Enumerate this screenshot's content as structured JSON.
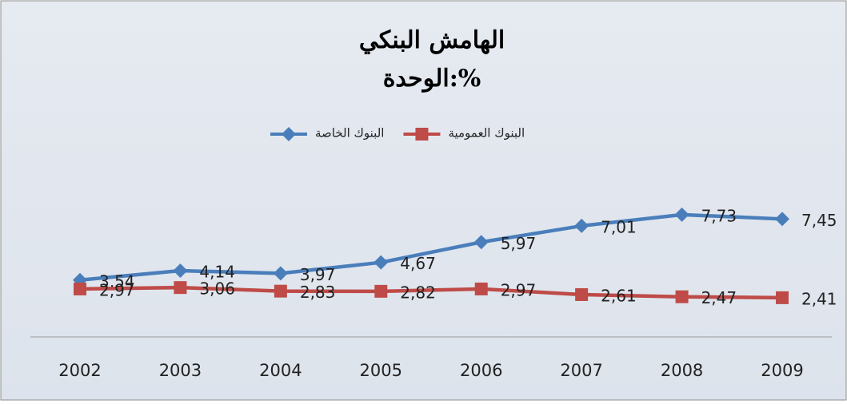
{
  "chart_data": {
    "type": "line",
    "title": "الهامش البنكي",
    "subtitle": "الوحدة:%",
    "categories": [
      "2002",
      "2003",
      "2004",
      "2005",
      "2006",
      "2007",
      "2008",
      "2009"
    ],
    "series": [
      {
        "name": "البنوك الخاصة",
        "color": "#4a7ebb",
        "marker": "diamond",
        "values": [
          3.54,
          4.14,
          3.97,
          4.67,
          5.97,
          7.01,
          7.73,
          7.45
        ],
        "value_labels": [
          "3,54",
          "4,14",
          "3,97",
          "4,67",
          "5,97",
          "7,01",
          "7,73",
          "7,45"
        ]
      },
      {
        "name": "البنوك العمومية",
        "color": "#be4b48",
        "marker": "square",
        "values": [
          2.97,
          3.06,
          2.83,
          2.82,
          2.97,
          2.61,
          2.47,
          2.41
        ],
        "value_labels": [
          "2,97",
          "3,06",
          "2,83",
          "2,82",
          "2,97",
          "2,61",
          "2,47",
          "2,41"
        ]
      }
    ],
    "ylim": [
      0,
      9
    ]
  }
}
